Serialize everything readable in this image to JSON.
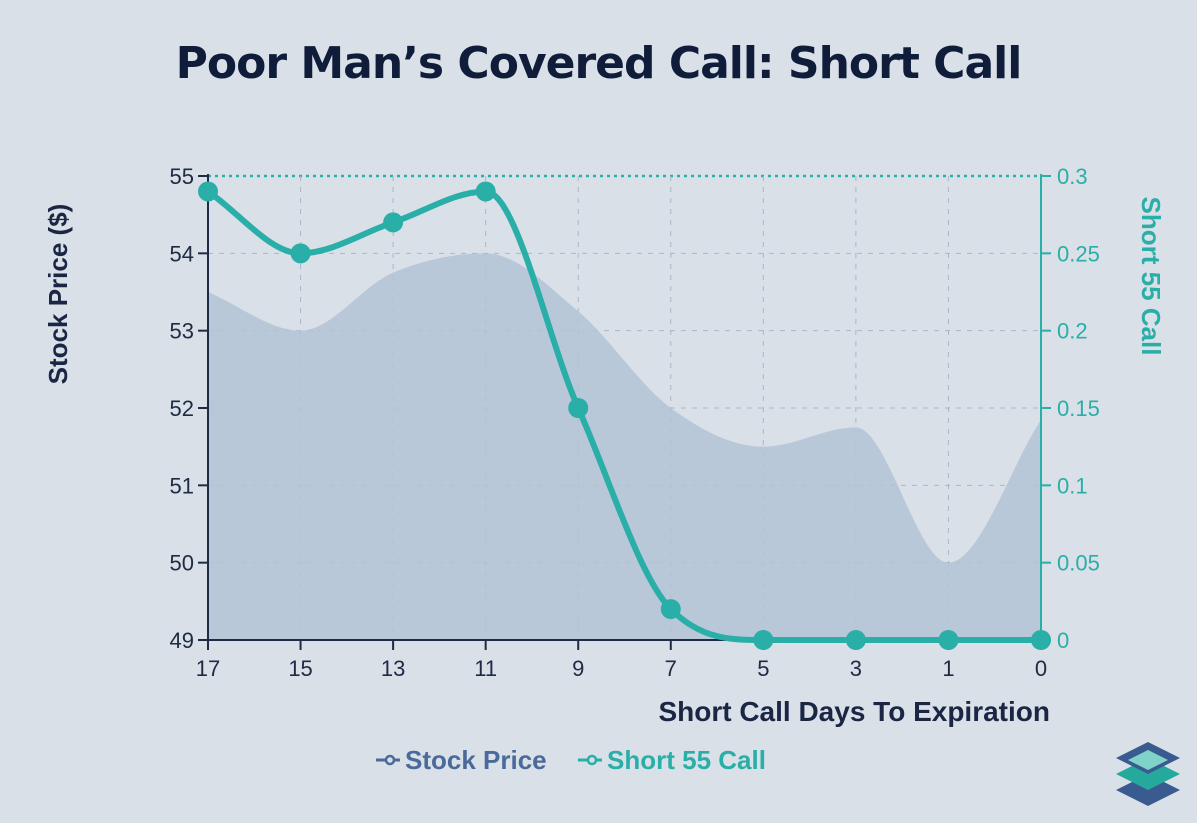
{
  "title": "Poor Man’s Covered Call: Short Call",
  "colors": {
    "background": "#d9e0e8",
    "area": "#b3c3d6",
    "line": "#2aaea8",
    "axis_left": "#1f2a44",
    "legend_stock": "#4a6a9a"
  },
  "chart_data": {
    "type": "line",
    "x_categories": [
      "17",
      "15",
      "13",
      "11",
      "9",
      "7",
      "5",
      "3",
      "1",
      "0"
    ],
    "xlabel": "Short Call Days To Expiration",
    "ylabel_left": "Stock Price ($)",
    "ylabel_right": "Short 55 Call",
    "ylim_left": [
      49,
      55
    ],
    "ylim_right": [
      0,
      0.3
    ],
    "yticks_left": [
      "55",
      "54",
      "53",
      "52",
      "51",
      "50",
      "49"
    ],
    "yticks_right": [
      "0.3",
      "0.25",
      "0.2",
      "0.15",
      "0.1",
      "0.05",
      "0"
    ],
    "series": [
      {
        "name": "Stock Price",
        "type": "area",
        "axis": "left",
        "values": [
          53.5,
          53.0,
          53.75,
          54.0,
          53.25,
          52.0,
          51.5,
          51.75,
          50.0,
          51.85
        ]
      },
      {
        "name": "Short 55 Call",
        "type": "line",
        "axis": "right",
        "values": [
          0.29,
          0.25,
          0.27,
          0.29,
          0.15,
          0.02,
          0.0,
          0.0,
          0.0,
          0.0
        ]
      }
    ],
    "legend": [
      "Stock Price",
      "Short 55 Call"
    ],
    "legend_position": "bottom-center",
    "grid": true
  }
}
